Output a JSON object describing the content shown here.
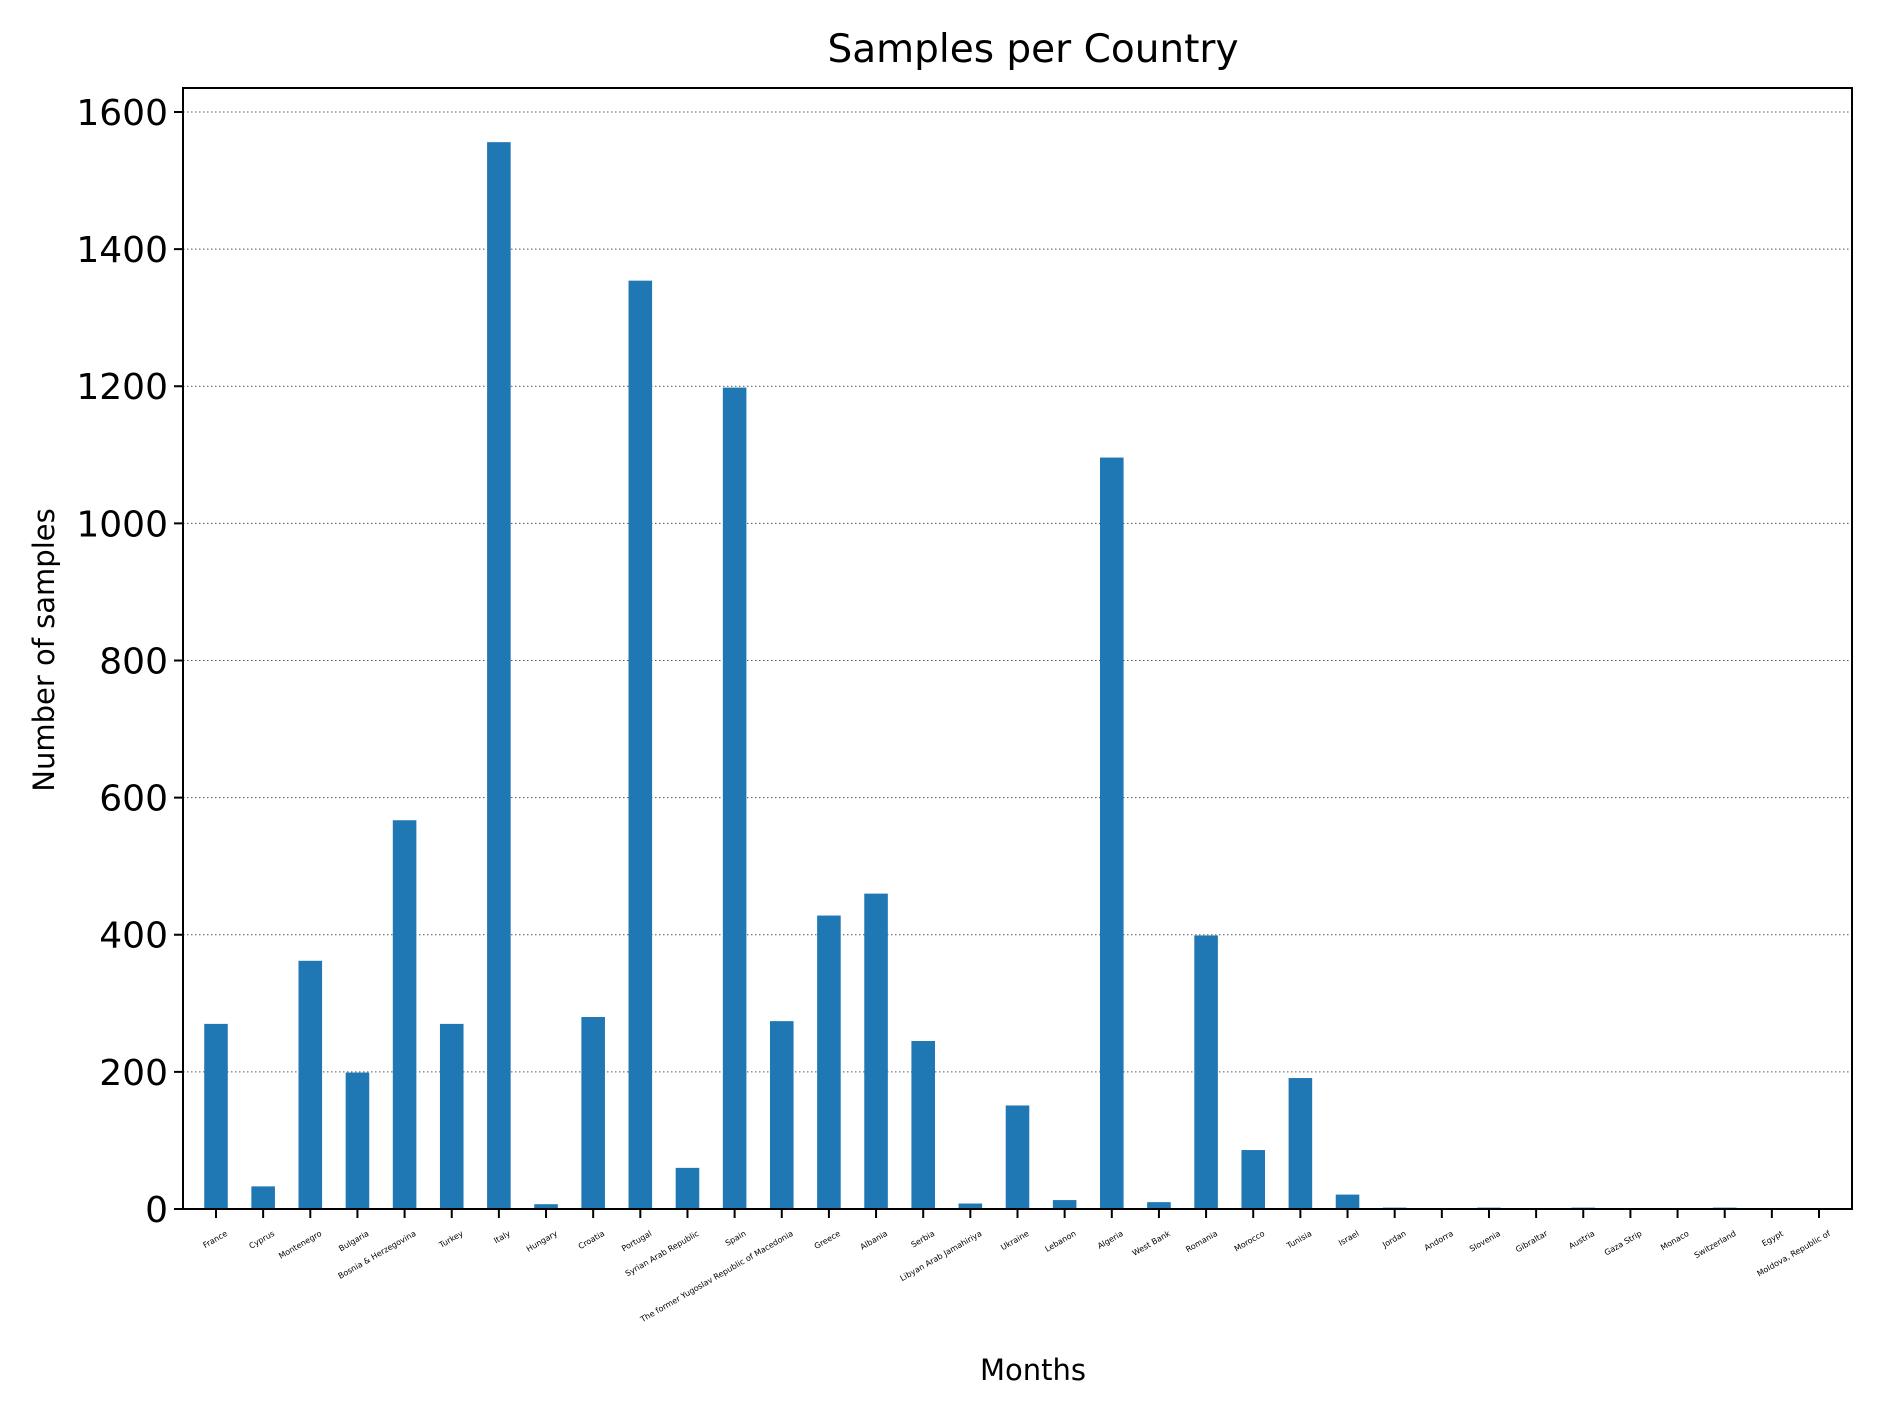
{
  "chart_data": {
    "type": "bar",
    "title": "Samples per Country",
    "xlabel": "Months",
    "ylabel": "Number of samples",
    "ylim": [
      0,
      1635
    ],
    "yticks": [
      0,
      200,
      400,
      600,
      800,
      1000,
      1200,
      1400,
      1600
    ],
    "grid": "y-dotted",
    "legend": "none",
    "bar_color": "#1f77b4",
    "categories": [
      "France",
      "Cyprus",
      "Montenegro",
      "Bulgaria",
      "Bosnia & Herzegovina",
      "Turkey",
      "Italy",
      "Hungary",
      "Croatia",
      "Portugal",
      "Syrian Arab Republic",
      "Spain",
      "The former Yugoslav Republic of Macedonia",
      "Greece",
      "Albania",
      "Serbia",
      "Libyan Arab Jamahiriya",
      "Ukraine",
      "Lebanon",
      "Algeria",
      "West Bank",
      "Romania",
      "Morocco",
      "Tunisia",
      "Israel",
      "Jordan",
      "Andorra",
      "Slovenia",
      "Gibraltar",
      "Austria",
      "Gaza Strip",
      "Monaco",
      "Switzerland",
      "Egypt",
      "Moldova, Republic of"
    ],
    "values": [
      270,
      33,
      362,
      199,
      567,
      270,
      1556,
      7,
      280,
      1354,
      60,
      1198,
      274,
      428,
      460,
      245,
      8,
      151,
      13,
      1096,
      10,
      399,
      86,
      191,
      21,
      2,
      1,
      2,
      1,
      2,
      1,
      1,
      2,
      1,
      1
    ]
  }
}
